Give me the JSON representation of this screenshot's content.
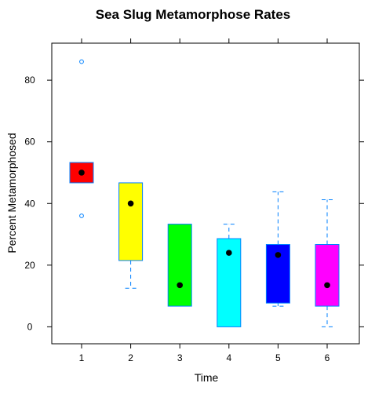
{
  "chart_data": {
    "type": "boxplot",
    "title": "Sea Slug Metamorphose Rates",
    "xlabel": "Time",
    "ylabel": "Percent Metamorphosed",
    "categories": [
      "1",
      "2",
      "3",
      "4",
      "5",
      "6"
    ],
    "yticks": [
      0,
      20,
      40,
      60,
      80
    ],
    "ylim": [
      -5.5,
      92
    ],
    "grid": false,
    "series": [
      {
        "category": "1",
        "color": "#ff0000",
        "whisker_low": 46.7,
        "q1": 46.7,
        "median": 50.0,
        "q3": 53.3,
        "whisker_high": 53.3,
        "outliers": [
          36.0,
          86.0
        ]
      },
      {
        "category": "2",
        "color": "#ffff00",
        "whisker_low": 12.5,
        "q1": 21.5,
        "median": 40.0,
        "q3": 46.7,
        "whisker_high": 46.7,
        "outliers": []
      },
      {
        "category": "3",
        "color": "#00ff00",
        "whisker_low": 6.7,
        "q1": 6.7,
        "median": 13.5,
        "q3": 33.3,
        "whisker_high": 33.3,
        "outliers": []
      },
      {
        "category": "4",
        "color": "#00ffff",
        "whisker_low": 0.0,
        "q1": 0.0,
        "median": 24.0,
        "q3": 28.6,
        "whisker_high": 33.3,
        "outliers": []
      },
      {
        "category": "5",
        "color": "#0000ff",
        "whisker_low": 6.7,
        "q1": 7.7,
        "median": 23.3,
        "q3": 26.7,
        "whisker_high": 43.8,
        "outliers": []
      },
      {
        "category": "6",
        "color": "#ff00ff",
        "whisker_low": 0.0,
        "q1": 6.7,
        "median": 13.5,
        "q3": 26.7,
        "whisker_high": 41.2,
        "outliers": []
      }
    ],
    "box_border_color": "#0080ff",
    "whisker_color": "#0080ff",
    "median_marker_color": "#000000"
  }
}
